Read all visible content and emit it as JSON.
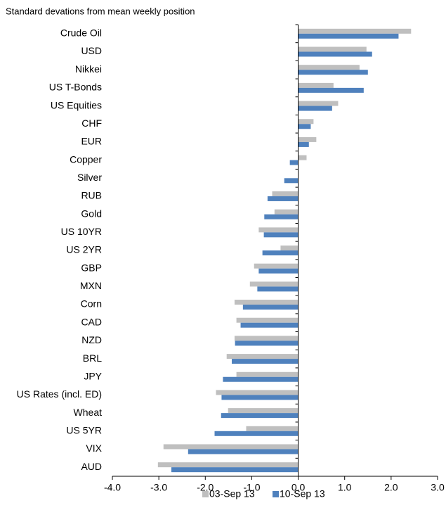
{
  "chart_data": {
    "type": "hbar",
    "title": "Standard devations from mean weekly position",
    "categories": [
      "Crude Oil",
      "USD",
      "Nikkei",
      "US T-Bonds",
      "US Equities",
      "CHF",
      "EUR",
      "Copper",
      "Silver",
      "RUB",
      "Gold",
      "US 10YR",
      "US 2YR",
      "GBP",
      "MXN",
      "Corn",
      "CAD",
      "NZD",
      "BRL",
      "JPY",
      "US Rates (incl. ED)",
      "Wheat",
      "US 5YR",
      "VIX",
      "AUD"
    ],
    "series": [
      {
        "name": "03-Sep 13",
        "color": "#bfbfbf",
        "values": [
          2.43,
          1.47,
          1.32,
          0.76,
          0.86,
          0.33,
          0.39,
          0.18,
          0,
          -0.56,
          -0.51,
          -0.85,
          -0.38,
          -0.95,
          -1.04,
          -1.37,
          -1.33,
          -1.37,
          -1.54,
          -1.33,
          -1.77,
          -1.51,
          -1.12,
          -2.9,
          -3.02
        ]
      },
      {
        "name": "10-Sep 13",
        "color": "#4f81bd",
        "values": [
          2.16,
          1.59,
          1.5,
          1.41,
          0.73,
          0.27,
          0.23,
          -0.18,
          -0.3,
          -0.66,
          -0.73,
          -0.74,
          -0.77,
          -0.85,
          -0.88,
          -1.19,
          -1.24,
          -1.36,
          -1.43,
          -1.62,
          -1.65,
          -1.66,
          -1.8,
          -2.37,
          -2.73
        ]
      }
    ],
    "xlim": [
      -4,
      3
    ],
    "xticks": [
      {
        "value": -4,
        "label": "-4.0"
      },
      {
        "value": -3,
        "label": "-3.0"
      },
      {
        "value": -2,
        "label": "-2.0"
      },
      {
        "value": -1,
        "label": "-1.0"
      },
      {
        "value": 0,
        "label": "0.0"
      },
      {
        "value": 1,
        "label": "1.0"
      },
      {
        "value": 2,
        "label": "2.0"
      },
      {
        "value": 3,
        "label": "3.0"
      }
    ]
  }
}
